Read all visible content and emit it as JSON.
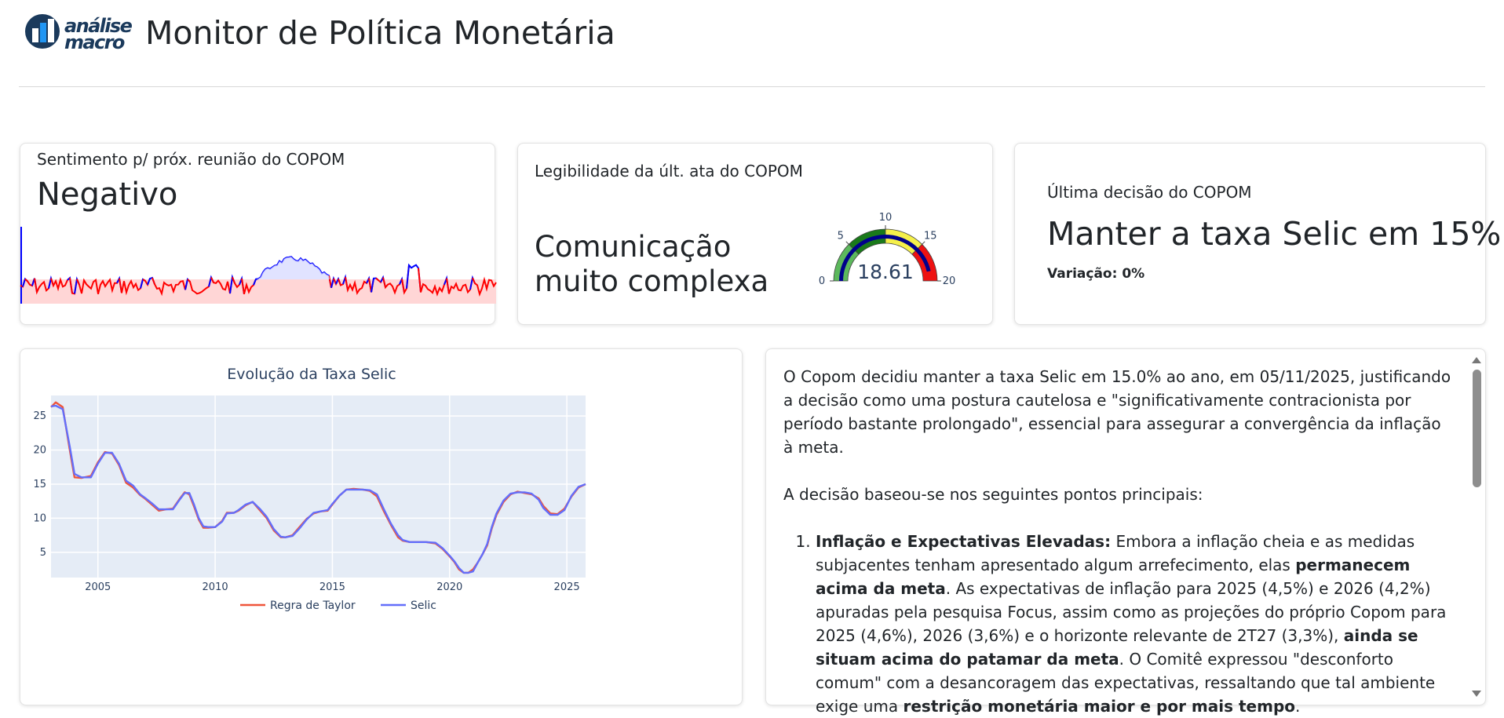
{
  "header": {
    "logo_text_line1": "análise",
    "logo_text_line2": "macro",
    "title": "Monitor de Política Monetária"
  },
  "cards": {
    "sentiment": {
      "label": "Sentimento p/ próx. reunião do COPOM",
      "value": "Negativo",
      "colors": {
        "negative": "#ff0000",
        "positive": "#0000ff",
        "band": "#ffd6d6"
      }
    },
    "legibility": {
      "label": "Legibilidade da últ. ata do COPOM",
      "value_line1": "Comunicação",
      "value_line2": "muito complexa",
      "gauge": {
        "value": 18.61,
        "value_label": "18.61",
        "min": 0,
        "max": 20,
        "ticks": [
          "0",
          "5",
          "10",
          "15",
          "20"
        ],
        "bands": [
          {
            "from": 0,
            "to": 5,
            "color": "#5cb85c"
          },
          {
            "from": 5,
            "to": 10,
            "color": "#1a7a1a"
          },
          {
            "from": 10,
            "to": 15,
            "color": "#f5f04a"
          },
          {
            "from": 15,
            "to": 20,
            "color": "#ee1111"
          }
        ],
        "bar_color": "#00008b"
      }
    },
    "decision": {
      "label": "Última decisão do COPOM",
      "value": "Manter a taxa Selic em 15%",
      "variation": "Variação: 0%"
    }
  },
  "chart_data": {
    "type": "line",
    "title": "Evolução da Taxa Selic",
    "xlabel": "",
    "ylabel": "",
    "xlim": [
      2003.0,
      2025.8
    ],
    "ylim": [
      1.3,
      28.0
    ],
    "x_ticks": [
      "2005",
      "2010",
      "2015",
      "2020",
      "2025"
    ],
    "y_ticks": [
      "5",
      "10",
      "15",
      "20",
      "25"
    ],
    "legend_position": "bottom",
    "colors": {
      "plot_bg": "#e5ecf6",
      "taylor": "#ef553b",
      "selic": "#636efa"
    },
    "series": [
      {
        "name": "Regra de Taylor",
        "x": [
          2003.0,
          2003.2,
          2003.5,
          2003.8,
          2004.0,
          2004.3,
          2004.7,
          2005.0,
          2005.3,
          2005.6,
          2005.9,
          2006.2,
          2006.5,
          2006.8,
          2007.0,
          2007.3,
          2007.6,
          2007.9,
          2008.2,
          2008.5,
          2008.7,
          2008.9,
          2009.1,
          2009.3,
          2009.5,
          2009.7,
          2010.0,
          2010.3,
          2010.5,
          2010.8,
          2011.0,
          2011.3,
          2011.6,
          2011.9,
          2012.2,
          2012.5,
          2012.8,
          2013.0,
          2013.3,
          2013.6,
          2013.9,
          2014.2,
          2014.5,
          2014.8,
          2015.0,
          2015.3,
          2015.6,
          2015.9,
          2016.3,
          2016.6,
          2016.9,
          2017.2,
          2017.5,
          2017.8,
          2018.0,
          2018.3,
          2018.7,
          2019.0,
          2019.4,
          2019.7,
          2020.0,
          2020.2,
          2020.4,
          2020.6,
          2020.8,
          2021.0,
          2021.2,
          2021.4,
          2021.6,
          2021.8,
          2022.0,
          2022.3,
          2022.6,
          2022.9,
          2023.2,
          2023.5,
          2023.8,
          2024.0,
          2024.3,
          2024.6,
          2024.9,
          2025.2,
          2025.5,
          2025.8
        ],
        "values": [
          26.3,
          27.0,
          26.3,
          20.0,
          16.0,
          15.9,
          16.2,
          18.2,
          19.7,
          19.5,
          17.8,
          15.2,
          14.5,
          13.4,
          12.9,
          12.0,
          11.1,
          11.3,
          11.4,
          12.9,
          13.8,
          13.5,
          11.7,
          9.8,
          8.6,
          8.6,
          8.7,
          9.6,
          10.8,
          10.8,
          11.1,
          11.9,
          12.4,
          11.2,
          10.0,
          8.2,
          7.2,
          7.2,
          7.5,
          8.7,
          9.9,
          10.7,
          11.0,
          11.1,
          12.0,
          13.3,
          14.2,
          14.3,
          14.2,
          14.0,
          13.2,
          11.0,
          9.0,
          7.2,
          6.7,
          6.5,
          6.5,
          6.5,
          6.3,
          5.5,
          4.4,
          3.6,
          2.5,
          2.0,
          2.0,
          2.5,
          3.5,
          4.7,
          6.0,
          8.5,
          10.5,
          12.4,
          13.5,
          13.9,
          13.7,
          13.5,
          12.9,
          11.8,
          10.7,
          10.6,
          11.4,
          13.2,
          14.5,
          15.0
        ]
      },
      {
        "name": "Selic",
        "x": [
          2003.0,
          2003.2,
          2003.5,
          2003.8,
          2004.0,
          2004.3,
          2004.7,
          2005.0,
          2005.3,
          2005.6,
          2005.9,
          2006.2,
          2006.5,
          2006.8,
          2007.0,
          2007.3,
          2007.6,
          2007.9,
          2008.2,
          2008.5,
          2008.7,
          2008.9,
          2009.1,
          2009.3,
          2009.5,
          2009.7,
          2010.0,
          2010.3,
          2010.5,
          2010.8,
          2011.0,
          2011.3,
          2011.6,
          2011.9,
          2012.2,
          2012.5,
          2012.8,
          2013.0,
          2013.3,
          2013.6,
          2013.9,
          2014.2,
          2014.5,
          2014.8,
          2015.0,
          2015.3,
          2015.6,
          2015.9,
          2016.3,
          2016.6,
          2016.9,
          2017.2,
          2017.5,
          2017.8,
          2018.0,
          2018.3,
          2018.7,
          2019.0,
          2019.4,
          2019.7,
          2020.0,
          2020.2,
          2020.4,
          2020.6,
          2020.8,
          2021.0,
          2021.2,
          2021.4,
          2021.6,
          2021.8,
          2022.0,
          2022.3,
          2022.6,
          2022.9,
          2023.2,
          2023.5,
          2023.8,
          2024.0,
          2024.3,
          2024.6,
          2024.9,
          2025.2,
          2025.5,
          2025.8
        ],
        "values": [
          26.4,
          26.5,
          26.0,
          20.5,
          16.5,
          16.0,
          16.0,
          18.0,
          19.6,
          19.6,
          18.0,
          15.5,
          14.8,
          13.5,
          13.0,
          12.2,
          11.3,
          11.3,
          11.3,
          12.8,
          13.7,
          13.7,
          12.0,
          10.0,
          8.8,
          8.7,
          8.7,
          9.5,
          10.7,
          10.8,
          11.2,
          12.0,
          12.4,
          11.4,
          10.2,
          8.4,
          7.3,
          7.2,
          7.4,
          8.5,
          9.8,
          10.8,
          11.0,
          11.2,
          12.1,
          13.3,
          14.2,
          14.2,
          14.2,
          14.1,
          13.5,
          11.3,
          9.2,
          7.5,
          6.8,
          6.5,
          6.5,
          6.5,
          6.4,
          5.6,
          4.5,
          3.7,
          2.7,
          2.0,
          2.0,
          2.2,
          3.5,
          4.7,
          6.2,
          8.7,
          10.7,
          12.6,
          13.6,
          13.8,
          13.8,
          13.6,
          12.7,
          11.5,
          10.5,
          10.5,
          11.2,
          13.3,
          14.6,
          15.0
        ]
      }
    ]
  },
  "commentary": {
    "para1": "O Copom decidiu manter a taxa Selic em 15.0% ao ano, em 05/11/2025, justificando a decisão como uma postura cautelosa e \"significativamente contracionista por período bastante prolongado\", essencial para assegurar a convergência da inflação à meta.",
    "para2": "A decisão baseou-se nos seguintes pontos principais:",
    "item1": {
      "heading": "Inflação e Expectativas Elevadas:",
      "text_a": " Embora a inflação cheia e as medidas subjacentes tenham apresentado algum arrefecimento, elas ",
      "bold_b": "permanecem acima da meta",
      "text_c": ". As expectativas de inflação para 2025 (4,5%) e 2026 (4,2%) apuradas pela pesquisa Focus, assim como as projeções do próprio Copom para 2025 (4,6%), 2026 (3,6%) e o horizonte relevante de 2T27 (3,3%), ",
      "bold_d": "ainda se situam acima do patamar da meta",
      "text_e": ". O Comitê expressou \"desconforto comum\" com a desancoragem das expectativas, ressaltando que tal ambiente exige uma ",
      "bold_f": "restrição monetária maior e por mais tempo",
      "text_g": "."
    }
  }
}
